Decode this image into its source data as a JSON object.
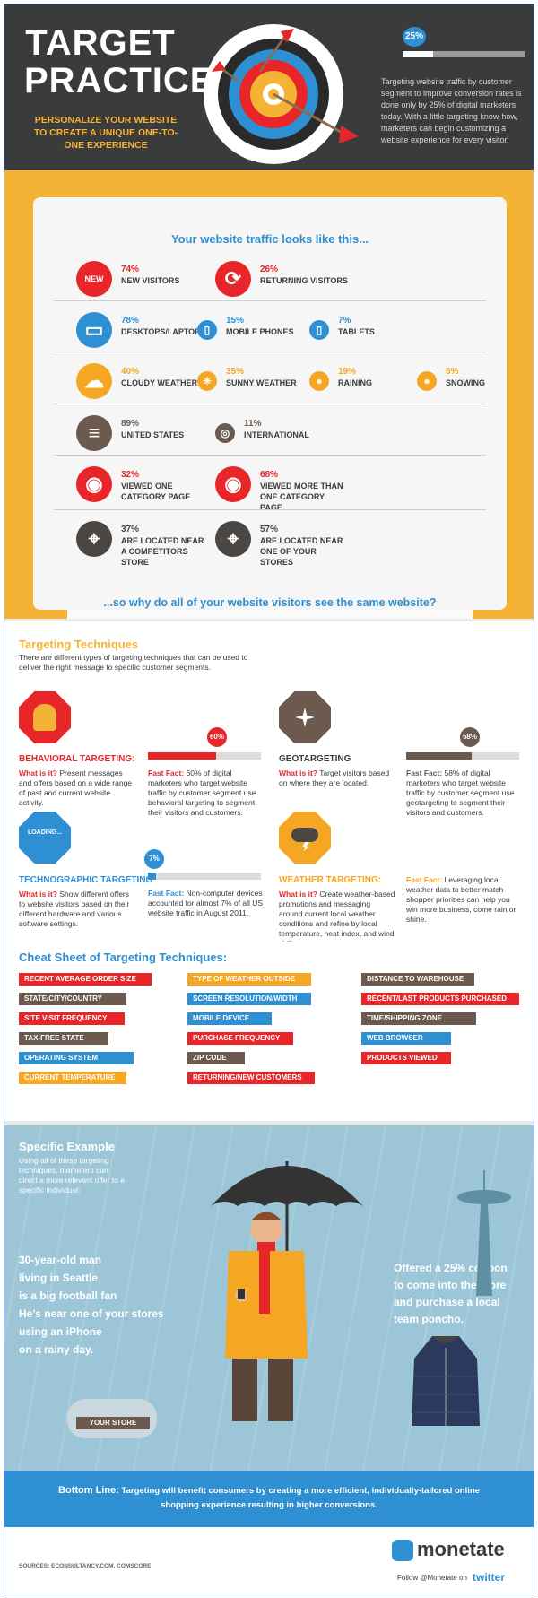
{
  "header": {
    "title_line1": "TARGET",
    "title_line2": "PRACTICE",
    "subtitle": "PERSONALIZE YOUR WEBSITE TO CREATE A UNIQUE ONE-TO-ONE EXPERIENCE",
    "stat_badge": "25%",
    "stat_fraction": 0.25,
    "stat_desc": "Targeting website traffic by customer segment to improve conversion rates is done only by 25% of digital marketers today. With a little targeting know-how, marketers can begin customizing a website experience for every visitor."
  },
  "traffic": {
    "title": "Your website traffic looks like this...",
    "rows": [
      [
        {
          "icon": "new-icon",
          "glyph": "NEW",
          "value": "74%",
          "label": "NEW VISITORS",
          "color": "#e8262a"
        },
        {
          "icon": "returning-icon",
          "glyph": "⟳",
          "value": "26%",
          "label": "RETURNING VISITORS",
          "color": "#e8262a"
        }
      ],
      [
        {
          "icon": "desktop-icon",
          "glyph": "▭",
          "value": "78%",
          "label": "DESKTOPS/LAPTOPS",
          "color": "#2e8fd3"
        },
        {
          "icon": "mobile-icon",
          "glyph": "▯",
          "value": "15%",
          "label": "MOBILE PHONES",
          "color": "#2e8fd3"
        },
        {
          "icon": "tablet-icon",
          "glyph": "▯",
          "value": "7%",
          "label": "TABLETS",
          "color": "#2e8fd3"
        }
      ],
      [
        {
          "icon": "cloud-icon",
          "glyph": "☁",
          "value": "40%",
          "label": "CLOUDY WEATHER",
          "color": "#f5a623"
        },
        {
          "icon": "sun-icon",
          "glyph": "☀",
          "value": "35%",
          "label": "SUNNY WEATHER",
          "color": "#f5a623"
        },
        {
          "icon": "rain-icon",
          "glyph": "●",
          "value": "19%",
          "label": "RAINING",
          "color": "#f5a623"
        },
        {
          "icon": "snow-icon",
          "glyph": "●",
          "value": "6%",
          "label": "SNOWING",
          "color": "#f5a623"
        }
      ],
      [
        {
          "icon": "us-flag-icon",
          "glyph": "≡",
          "value": "89%",
          "label": "UNITED STATES",
          "color": "#6b5a4d"
        },
        {
          "icon": "globe-icon",
          "glyph": "◎",
          "value": "11%",
          "label": "INTERNATIONAL",
          "color": "#6b5a4d"
        }
      ],
      [
        {
          "icon": "eye-icon",
          "glyph": "◉",
          "value": "32%",
          "label": "VIEWED ONE CATEGORY PAGE",
          "color": "#e8262a"
        },
        {
          "icon": "eye-large-icon",
          "glyph": "◉",
          "value": "68%",
          "label": "VIEWED MORE THAN ONE CATEGORY PAGE",
          "color": "#e8262a"
        }
      ],
      [
        {
          "icon": "map-pin-icon",
          "glyph": "⌖",
          "value": "37%",
          "label": "ARE LOCATED NEAR A COMPETITORS STORE",
          "color": "#4a4644"
        },
        {
          "icon": "map-pin-large-icon",
          "glyph": "⌖",
          "value": "57%",
          "label": "ARE LOCATED NEAR ONE OF YOUR STORES",
          "color": "#4a4644"
        }
      ]
    ],
    "question": "...so why do all of your website visitors see the same website?"
  },
  "techniques": {
    "title": "Targeting Techniques",
    "intro": "There are different types of targeting techniques that can be used to deliver the right message to specific customer segments.",
    "items": [
      {
        "title": "BEHAVIORAL TARGETING:",
        "what_label": "What is it?",
        "what": "Present messages and offers based on a wide range of past and current website activity.",
        "badge": "60%",
        "fraction": 0.6,
        "fact_label": "Fast Fact:",
        "fact": "60% of digital marketers who target website traffic by customer segment use behavioral targeting to segment their visitors and customers.",
        "color": "#e8262a"
      },
      {
        "title": "GEOTARGETING",
        "what_label": "What is it?",
        "what": "Target visitors based on where they are located.",
        "badge": "58%",
        "fraction": 0.58,
        "fact_label": "Fast Fact:",
        "fact": "58% of digital marketers who target website traffic by customer segment use geotargeting to segment their visitors and customers.",
        "color": "#6b5a4d"
      },
      {
        "title": "TECHNOGRAPHIC TARGETING",
        "what_label": "What is it?",
        "what": "Show different offers to website visitors based on their different hardware and various software settings.",
        "badge": "7%",
        "fraction": 0.07,
        "fact_label": "Fast Fact:",
        "fact": "Non-computer devices accounted for almost 7% of all US website traffic in August 2011.",
        "color": "#2e8fd3",
        "icon_text": "LOADING..."
      },
      {
        "title": "WEATHER TARGETING:",
        "what_label": "What is it?",
        "what": "Create weather-based promotions and messaging around current local weather conditions and refine by local temperature, heat index, and wind chill.",
        "fact_label": "Fast Fact:",
        "fact": "Leveraging local weather data to better match shopper priorities can help you win more business, come rain or shine.",
        "color": "#f5a623"
      }
    ]
  },
  "cheat": {
    "title": "Cheat Sheet of Targeting Techniques:",
    "columns": [
      [
        {
          "t": "RECENT AVERAGE ORDER SIZE",
          "c": "#e8262a"
        },
        {
          "t": "STATE/CITY/COUNTRY",
          "c": "#6b5a4d"
        },
        {
          "t": "SITE VISIT FREQUENCY",
          "c": "#e8262a"
        },
        {
          "t": "TAX-FREE STATE",
          "c": "#6b5a4d"
        },
        {
          "t": "OPERATING SYSTEM",
          "c": "#2e8fd3"
        },
        {
          "t": "CURRENT TEMPERATURE",
          "c": "#f5a623"
        }
      ],
      [
        {
          "t": "TYPE OF WEATHER OUTSIDE",
          "c": "#f5a623"
        },
        {
          "t": "SCREEN RESOLUTION/WIDTH",
          "c": "#2e8fd3"
        },
        {
          "t": "MOBILE DEVICE",
          "c": "#2e8fd3"
        },
        {
          "t": "PURCHASE FREQUENCY",
          "c": "#e8262a"
        },
        {
          "t": "ZIP CODE",
          "c": "#6b5a4d"
        },
        {
          "t": "RETURNING/NEW CUSTOMERS",
          "c": "#e8262a"
        }
      ],
      [
        {
          "t": "DISTANCE TO WAREHOUSE",
          "c": "#6b5a4d"
        },
        {
          "t": "RECENT/LAST PRODUCTS PURCHASED",
          "c": "#e8262a"
        },
        {
          "t": "TIME/SHIPPING ZONE",
          "c": "#6b5a4d"
        },
        {
          "t": "WEB BROWSER",
          "c": "#2e8fd3"
        },
        {
          "t": "PRODUCTS VIEWED",
          "c": "#e8262a"
        }
      ]
    ]
  },
  "example": {
    "title": "Specific Example",
    "intro": "Using all of these targeting techniques, marketers can direct a more relevant offer to a specific individual:",
    "left_lines": [
      "30-year-old man",
      "living in Seattle",
      "is a big football fan",
      "He’s near one of your stores",
      "using an iPhone",
      "on a rainy day."
    ],
    "right_lines": [
      "Offered a 25% coupon",
      "to come into the store",
      "and purchase a local",
      "team poncho."
    ],
    "store_label": "YOUR STORE"
  },
  "bottom_line": {
    "label": "Bottom Line:",
    "text": "Targeting will benefit consumers by creating a more efficient, individually-tailored online shopping experience resulting in higher conversions."
  },
  "footer": {
    "sources": "SOURCES: ECONSULTANCY.COM, COMSCORE",
    "brand": "monetate",
    "follow": "Follow @Monetate on",
    "twitter": "twitter"
  }
}
